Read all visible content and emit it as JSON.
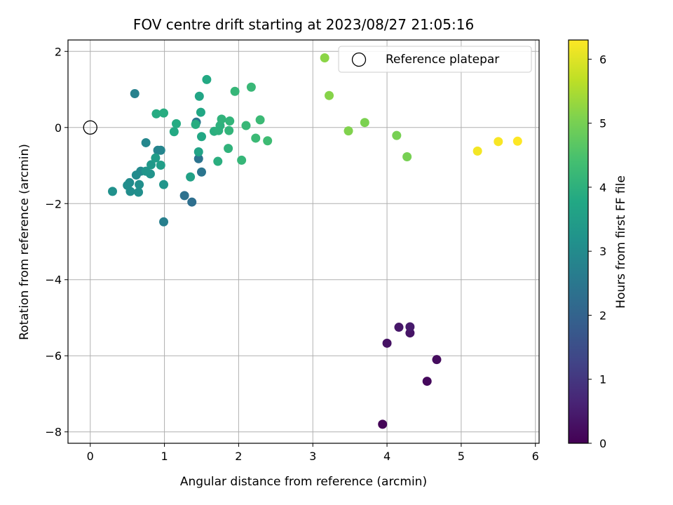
{
  "chart_data": {
    "type": "scatter",
    "title": "FOV centre drift starting at 2023/08/27 21:05:16",
    "xlabel": "Angular distance from reference (arcmin)",
    "ylabel": "Rotation from reference (arcmin)",
    "xlim": [
      -0.3,
      6.05
    ],
    "ylim": [
      -8.3,
      2.3
    ],
    "xticks": [
      0,
      1,
      2,
      3,
      4,
      5,
      6
    ],
    "xtick_labels": [
      "0",
      "1",
      "2",
      "3",
      "4",
      "5",
      "6"
    ],
    "yticks": [
      -8,
      -6,
      -4,
      -2,
      0,
      2
    ],
    "ytick_labels": [
      "−8",
      "−6",
      "−4",
      "−2",
      "0",
      "2"
    ],
    "grid": true,
    "legend": {
      "placement": "top-right",
      "entries": [
        "Reference platepar"
      ]
    },
    "reference_point": {
      "x": 0,
      "y": 0
    },
    "colorbar": {
      "label": "Hours from first FF file",
      "colormap": "viridis",
      "range": [
        0,
        6.3
      ],
      "ticks": [
        0,
        1,
        2,
        3,
        4,
        5,
        6
      ],
      "tick_labels": [
        "0",
        "1",
        "2",
        "3",
        "4",
        "5",
        "6"
      ]
    },
    "points": [
      {
        "x": 3.94,
        "y": -7.8,
        "c": 0.05
      },
      {
        "x": 4.54,
        "y": -6.67,
        "c": 0.15
      },
      {
        "x": 4.67,
        "y": -6.1,
        "c": 0.2
      },
      {
        "x": 4.0,
        "y": -5.67,
        "c": 0.3
      },
      {
        "x": 4.31,
        "y": -5.4,
        "c": 0.35
      },
      {
        "x": 4.16,
        "y": -5.25,
        "c": 0.4
      },
      {
        "x": 4.31,
        "y": -5.24,
        "c": 0.45
      },
      {
        "x": 1.37,
        "y": -1.96,
        "c": 2.3
      },
      {
        "x": 1.27,
        "y": -1.79,
        "c": 2.35
      },
      {
        "x": 1.46,
        "y": -0.82,
        "c": 2.4
      },
      {
        "x": 1.5,
        "y": -1.17,
        "c": 2.45
      },
      {
        "x": 1.43,
        "y": 0.14,
        "c": 2.5
      },
      {
        "x": 0.99,
        "y": -2.48,
        "c": 2.7
      },
      {
        "x": 0.6,
        "y": 0.89,
        "c": 2.75
      },
      {
        "x": 0.91,
        "y": -0.6,
        "c": 2.8
      },
      {
        "x": 0.95,
        "y": -0.6,
        "c": 2.85
      },
      {
        "x": 0.75,
        "y": -0.4,
        "c": 2.9
      },
      {
        "x": 0.68,
        "y": -1.15,
        "c": 2.95
      },
      {
        "x": 0.62,
        "y": -1.25,
        "c": 3.0
      },
      {
        "x": 0.53,
        "y": -1.45,
        "c": 3.0
      },
      {
        "x": 0.5,
        "y": -1.52,
        "c": 3.05
      },
      {
        "x": 0.54,
        "y": -1.68,
        "c": 3.05
      },
      {
        "x": 0.66,
        "y": -1.5,
        "c": 3.1
      },
      {
        "x": 0.65,
        "y": -1.7,
        "c": 3.1
      },
      {
        "x": 0.3,
        "y": -1.68,
        "c": 3.15
      },
      {
        "x": 0.81,
        "y": -1.22,
        "c": 3.2
      },
      {
        "x": 0.75,
        "y": -1.15,
        "c": 3.25
      },
      {
        "x": 0.99,
        "y": -1.5,
        "c": 3.25
      },
      {
        "x": 0.82,
        "y": -0.98,
        "c": 3.35
      },
      {
        "x": 0.88,
        "y": -0.8,
        "c": 3.45
      },
      {
        "x": 0.95,
        "y": -0.99,
        "c": 3.5
      },
      {
        "x": 1.35,
        "y": -1.3,
        "c": 3.6
      },
      {
        "x": 1.46,
        "y": -0.64,
        "c": 3.65
      },
      {
        "x": 1.47,
        "y": 0.82,
        "c": 3.7
      },
      {
        "x": 1.49,
        "y": 0.4,
        "c": 3.75
      },
      {
        "x": 1.5,
        "y": -0.24,
        "c": 3.75
      },
      {
        "x": 1.57,
        "y": 1.26,
        "c": 3.8
      },
      {
        "x": 1.13,
        "y": -0.11,
        "c": 3.8
      },
      {
        "x": 1.16,
        "y": 0.1,
        "c": 3.85
      },
      {
        "x": 0.89,
        "y": 0.36,
        "c": 3.85
      },
      {
        "x": 0.99,
        "y": 0.38,
        "c": 3.9
      },
      {
        "x": 1.42,
        "y": 0.08,
        "c": 3.9
      },
      {
        "x": 1.72,
        "y": -0.89,
        "c": 3.95
      },
      {
        "x": 1.67,
        "y": -0.1,
        "c": 3.95
      },
      {
        "x": 1.73,
        "y": -0.08,
        "c": 4.0
      },
      {
        "x": 1.75,
        "y": 0.05,
        "c": 4.0
      },
      {
        "x": 1.77,
        "y": 0.22,
        "c": 4.05
      },
      {
        "x": 1.86,
        "y": -0.55,
        "c": 4.05
      },
      {
        "x": 1.88,
        "y": 0.17,
        "c": 4.1
      },
      {
        "x": 1.87,
        "y": -0.08,
        "c": 4.1
      },
      {
        "x": 1.95,
        "y": 0.95,
        "c": 4.15
      },
      {
        "x": 2.04,
        "y": -0.86,
        "c": 4.15
      },
      {
        "x": 2.1,
        "y": 0.05,
        "c": 4.2
      },
      {
        "x": 2.17,
        "y": 1.06,
        "c": 4.2
      },
      {
        "x": 2.23,
        "y": -0.28,
        "c": 4.25
      },
      {
        "x": 2.29,
        "y": 0.2,
        "c": 4.25
      },
      {
        "x": 2.39,
        "y": -0.35,
        "c": 4.3
      },
      {
        "x": 3.16,
        "y": 1.83,
        "c": 5.2
      },
      {
        "x": 3.22,
        "y": 0.84,
        "c": 5.15
      },
      {
        "x": 3.48,
        "y": -0.09,
        "c": 5.1
      },
      {
        "x": 3.7,
        "y": 0.13,
        "c": 5.05
      },
      {
        "x": 4.13,
        "y": -0.21,
        "c": 5.0
      },
      {
        "x": 4.27,
        "y": -0.77,
        "c": 5.0
      },
      {
        "x": 5.22,
        "y": -0.62,
        "c": 6.2
      },
      {
        "x": 5.5,
        "y": -0.37,
        "c": 6.25
      },
      {
        "x": 5.76,
        "y": -0.36,
        "c": 6.3
      }
    ]
  }
}
